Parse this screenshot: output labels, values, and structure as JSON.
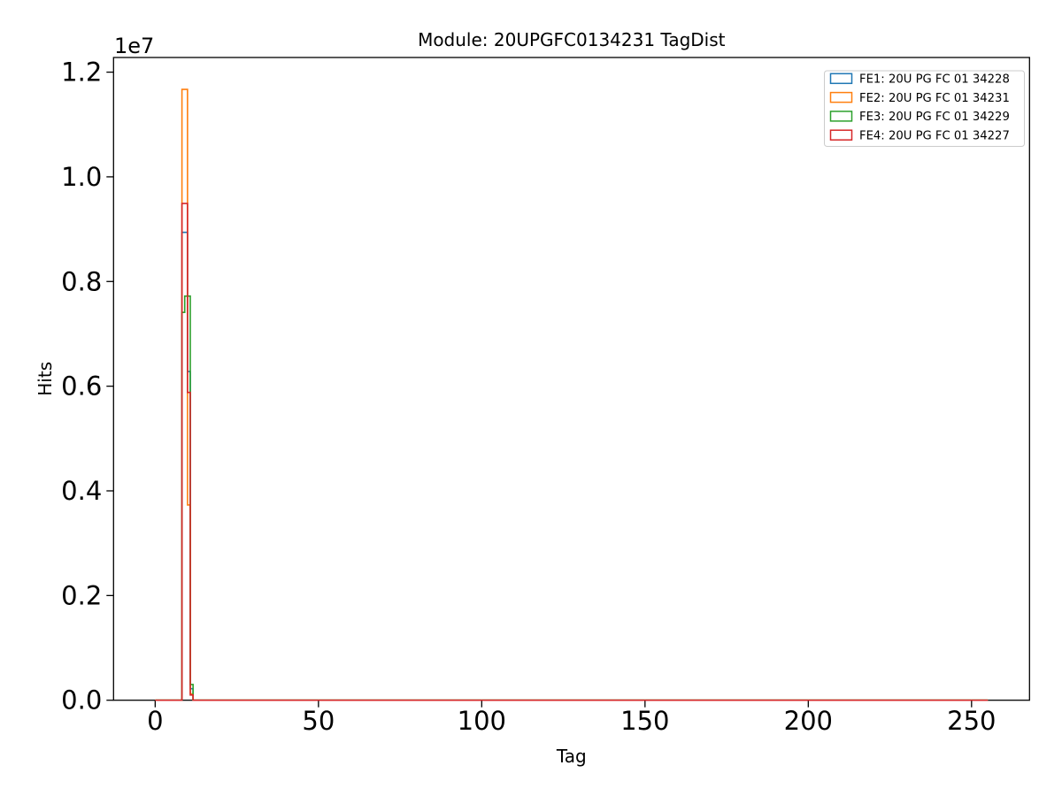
{
  "chart_data": {
    "type": "step-histogram",
    "title": "Module: 20UPGFC0134231 TagDist",
    "xlabel": "Tag",
    "ylabel": "Hits",
    "y_offset_label": "1e7",
    "xlim": [
      -12.75,
      267.75
    ],
    "ylim": [
      0,
      12280000
    ],
    "baseline_range": [
      0,
      255
    ],
    "x_ticks": [
      0,
      50,
      100,
      150,
      200,
      250
    ],
    "y_ticks": [
      0,
      2000000,
      4000000,
      6000000,
      8000000,
      10000000,
      12000000
    ],
    "y_tick_labels": [
      "0.0",
      "0.2",
      "0.4",
      "0.6",
      "0.8",
      "1.0",
      "1.2"
    ],
    "grid": false,
    "legend_position": "upper right",
    "bin_edges": [
      8.2,
      9.05,
      9.9,
      10.75,
      11.6
    ],
    "series": [
      {
        "name": "FE1: 20U PG FC 01 34228",
        "color": "#1f77b4",
        "values": [
          8940000,
          8940000,
          6280000,
          220000
        ]
      },
      {
        "name": "FE2: 20U PG FC 01 34231",
        "color": "#ff7f0e",
        "values": [
          11670000,
          11670000,
          3730000,
          120000
        ]
      },
      {
        "name": "FE3: 20U PG FC 01 34229",
        "color": "#2ca02c",
        "values": [
          7410000,
          7720000,
          7720000,
          300000
        ]
      },
      {
        "name": "FE4: 20U PG FC 01 34227",
        "color": "#d62728",
        "values": [
          9490000,
          9490000,
          5880000,
          100000
        ]
      }
    ]
  }
}
